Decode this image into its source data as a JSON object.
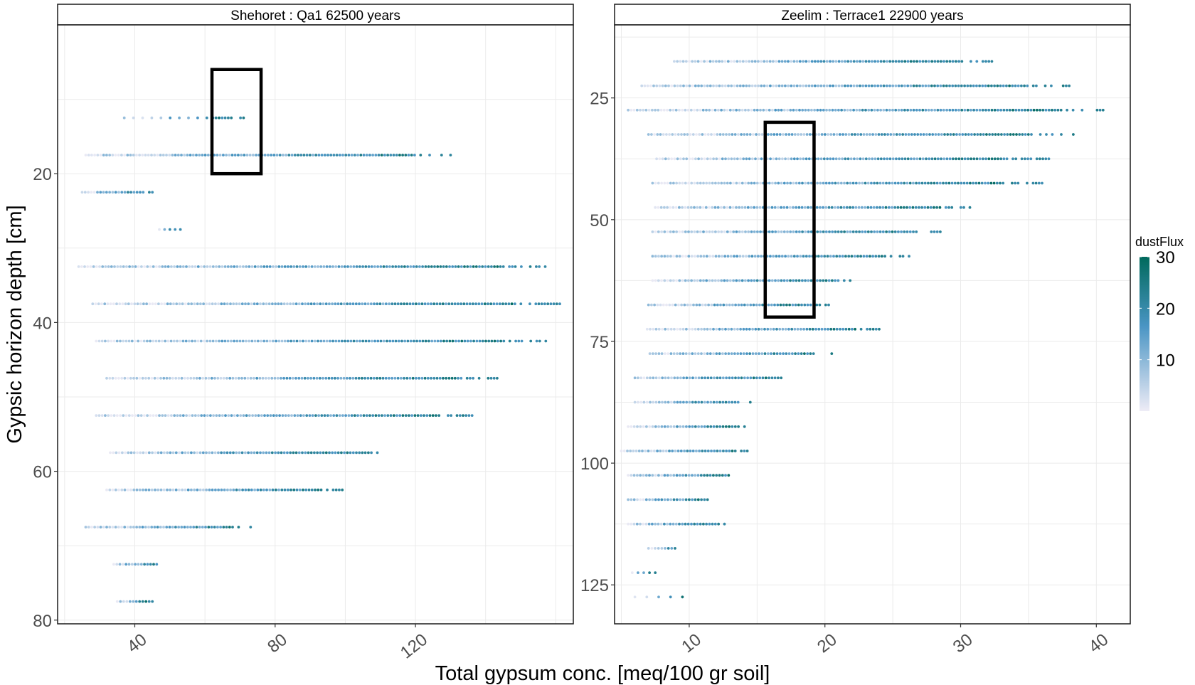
{
  "chart_data": {
    "type": "scatter",
    "ylabel": "Gypsic horizon depth [cm]",
    "xlabel": "Total gypsum conc. [meq/100 gr soil]",
    "y_reversed": true,
    "grid": true,
    "legend": {
      "title": "dustFlux",
      "placement": "right",
      "range": [
        0,
        30
      ],
      "ticks": [
        "10",
        "20",
        "30"
      ],
      "tick_values": [
        10,
        20,
        30
      ],
      "color_low": "#eeecf6",
      "color_mid": "#4a95c4",
      "color_high": "#00695c"
    },
    "panels": [
      {
        "strip": "Shehoret :  Qa1   62500  years",
        "xlim": [
          18,
          165
        ],
        "ylim": [
          80.5,
          0
        ],
        "x_ticks": [
          "40",
          "80",
          "120"
        ],
        "x_tick_values": [
          40,
          80,
          120
        ],
        "y_ticks": [
          "20",
          "40",
          "60",
          "80"
        ],
        "y_tick_values": [
          20,
          40,
          60,
          80
        ],
        "rows": [
          {
            "depth": 12.5,
            "x_min": 37,
            "x_max": 71,
            "dense_from": 62
          },
          {
            "depth": 17.5,
            "x_min": 26,
            "x_max": 130
          },
          {
            "depth": 22.5,
            "x_min": 25,
            "x_max": 45
          },
          {
            "depth": 27.5,
            "x_min": 47,
            "x_max": 53,
            "sparse": true
          },
          {
            "depth": 32.5,
            "x_min": 24,
            "x_max": 157
          },
          {
            "depth": 37.5,
            "x_min": 28,
            "x_max": 162
          },
          {
            "depth": 42.5,
            "x_min": 29,
            "x_max": 158
          },
          {
            "depth": 47.5,
            "x_min": 32,
            "x_max": 145
          },
          {
            "depth": 52.5,
            "x_min": 29,
            "x_max": 137
          },
          {
            "depth": 57.5,
            "x_min": 33,
            "x_max": 110
          },
          {
            "depth": 62.5,
            "x_min": 32,
            "x_max": 100
          },
          {
            "depth": 67.5,
            "x_min": 26,
            "x_max": 73
          },
          {
            "depth": 72.5,
            "x_min": 34,
            "x_max": 48
          },
          {
            "depth": 77.5,
            "x_min": 35,
            "x_max": 45
          }
        ],
        "highlight_box": {
          "x": [
            62,
            76
          ],
          "y": [
            6,
            20
          ]
        }
      },
      {
        "strip": "Zeelim :  Terrace1   22900  years",
        "xlim": [
          4.5,
          42.5
        ],
        "ylim": [
          133,
          10
        ],
        "x_ticks": [
          "10",
          "20",
          "30",
          "40"
        ],
        "x_tick_values": [
          10,
          20,
          30,
          40
        ],
        "y_ticks": [
          "25",
          "50",
          "75",
          "100",
          "125"
        ],
        "y_tick_values": [
          25,
          50,
          75,
          100,
          125
        ],
        "rows": [
          {
            "depth": 17.5,
            "x_min": 8.9,
            "x_max": 32.3
          },
          {
            "depth": 22.5,
            "x_min": 6.5,
            "x_max": 38
          },
          {
            "depth": 27.5,
            "x_min": 5.5,
            "x_max": 40.5
          },
          {
            "depth": 32.5,
            "x_min": 7,
            "x_max": 38.3
          },
          {
            "depth": 37.5,
            "x_min": 7.6,
            "x_max": 36.5
          },
          {
            "depth": 42.5,
            "x_min": 7.3,
            "x_max": 36
          },
          {
            "depth": 47.5,
            "x_min": 7.5,
            "x_max": 30.9
          },
          {
            "depth": 52.5,
            "x_min": 7.3,
            "x_max": 28.5
          },
          {
            "depth": 57.5,
            "x_min": 7.3,
            "x_max": 26.2
          },
          {
            "depth": 62.5,
            "x_min": 7.3,
            "x_max": 22.3
          },
          {
            "depth": 67.5,
            "x_min": 7,
            "x_max": 20.5
          },
          {
            "depth": 72.5,
            "x_min": 6.9,
            "x_max": 24
          },
          {
            "depth": 77.5,
            "x_min": 7.1,
            "x_max": 20.5
          },
          {
            "depth": 82.5,
            "x_min": 6,
            "x_max": 17
          },
          {
            "depth": 87.5,
            "x_min": 6,
            "x_max": 14.5
          },
          {
            "depth": 92.5,
            "x_min": 5.5,
            "x_max": 14.3
          },
          {
            "depth": 97.5,
            "x_min": 5,
            "x_max": 14.5
          },
          {
            "depth": 102.5,
            "x_min": 5.5,
            "x_max": 13.8
          },
          {
            "depth": 107.5,
            "x_min": 5.5,
            "x_max": 11.8
          },
          {
            "depth": 112.5,
            "x_min": 5.5,
            "x_max": 12.6
          },
          {
            "depth": 117.5,
            "x_min": 7,
            "x_max": 9.2
          },
          {
            "depth": 122.5,
            "x_min": 5.8,
            "x_max": 7.5,
            "sparse": true
          },
          {
            "depth": 127.5,
            "x_min": 6,
            "x_max": 9.5,
            "sparse": true
          }
        ],
        "highlight_box": {
          "x": [
            15.6,
            19.2
          ],
          "y": [
            30,
            70
          ]
        }
      }
    ]
  }
}
